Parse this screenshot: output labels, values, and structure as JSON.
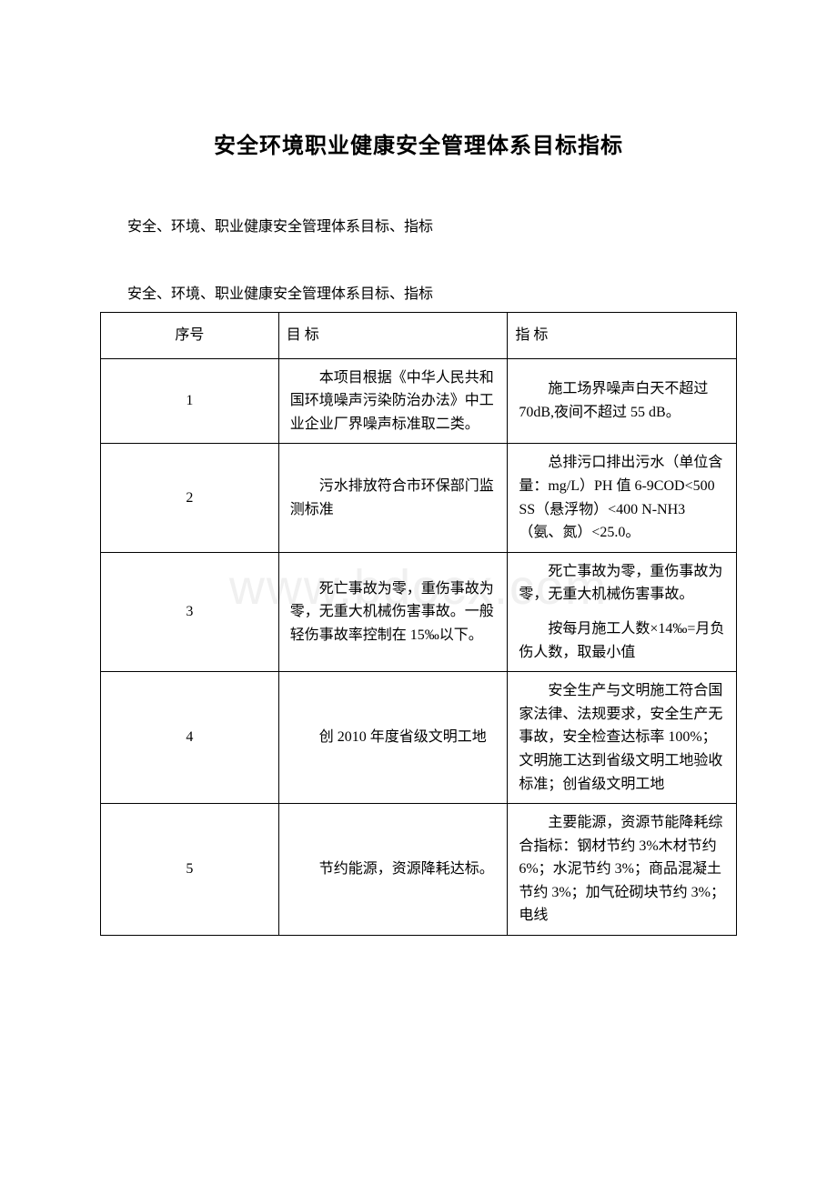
{
  "document": {
    "title": "安全环境职业健康安全管理体系目标指标",
    "subtitle": "安全、环境、职业健康安全管理体系目标、指标",
    "subtitle2": "安全、环境、职业健康安全管理体系目标、指标",
    "watermark": "www.bdocx.com"
  },
  "table": {
    "columns": [
      "序号",
      "目 标",
      "指 标"
    ],
    "rows": [
      {
        "seq": "1",
        "goal": "本项目根据《中华人民共和国环境噪声污染防治办法》中工业企业厂界噪声标准取二类。",
        "target": "施工场界噪声白天不超过 70dB,夜间不超过 55 dB。"
      },
      {
        "seq": "2",
        "goal": "污水排放符合市环保部门监测标准",
        "target": "总排污口排出污水（单位含量：mg/L）PH 值 6-9COD<500 SS（悬浮物）<400 N-NH3（氨、氮）<25.0。"
      },
      {
        "seq": "3",
        "goal": "死亡事故为零，重伤事故为零，无重大机械伤害事故。一般轻伤事故率控制在 15‰以下。",
        "target_p1": "死亡事故为零，重伤事故为零，无重大机械伤害事故。",
        "target_p2": "按每月施工人数×14‰=月负伤人数，取最小值"
      },
      {
        "seq": "4",
        "goal": "创 2010 年度省级文明工地",
        "target": "安全生产与文明施工符合国家法律、法规要求，安全生产无事故，安全检查达标率 100%；文明施工达到省级文明工地验收标准；创省级文明工地"
      },
      {
        "seq": "5",
        "goal": "节约能源，资源降耗达标。",
        "target": "主要能源，资源节能降耗综合指标：钢材节约 3%木材节约 6%；水泥节约 3%；商品混凝土节约 3%；加气砼砌块节约 3%；电线"
      }
    ]
  }
}
